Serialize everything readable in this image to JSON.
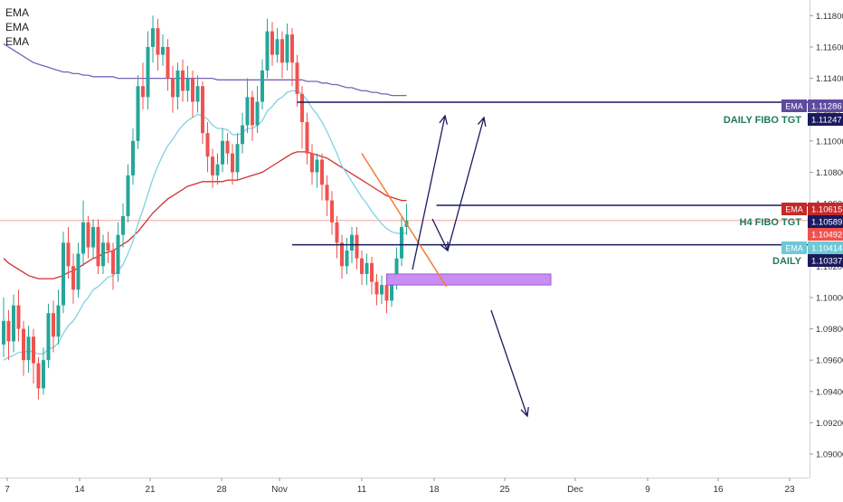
{
  "legend": {
    "items": [
      "EMA",
      "EMA",
      "EMA"
    ]
  },
  "chart_data": {
    "type": "candlestick",
    "symbol_unit": "price",
    "ylim": [
      1.0885,
      1.119
    ],
    "y_ticks": [
      "1.11800",
      "1.11600",
      "1.11400",
      "1.11200",
      "1.11000",
      "1.10800",
      "1.10600",
      "1.10400",
      "1.10200",
      "1.10000",
      "1.09800",
      "1.09600",
      "1.09400",
      "1.09200",
      "1.09000"
    ],
    "x_ticks": [
      "7",
      "14",
      "21",
      "28",
      "Nov",
      "11",
      "18",
      "25",
      "Dec",
      "9",
      "16",
      "23"
    ],
    "grid": false,
    "colors": {
      "up": "#26a69a",
      "down": "#ef5350",
      "ema_slow": "#7b61b7",
      "ema_mid": "#d32f2f",
      "ema_fast": "#7fd3e0",
      "zone": "#c98ef2",
      "annotation": "#1a1a5e",
      "triangle_line": "#f57c34"
    },
    "price_labels": [
      {
        "text": "EMA",
        "value": "1.11286",
        "price": 1.11286,
        "color": "#5e4b9e",
        "tag_color": "#5e4b9e"
      },
      {
        "text": "DAILY FIBO TGT",
        "value": "1.11247",
        "price": 1.11247,
        "color": "#1e7a5a",
        "tag_color": "#1a1a5e"
      },
      {
        "text": "EMA",
        "value": "1.10615",
        "price": 1.10615,
        "color": "#c62828",
        "tag_color": "#c62828"
      },
      {
        "text": "H4 FIBO TGT",
        "value": "1.10589",
        "price": 1.10589,
        "color": "#1e7a5a",
        "tag_color": "#1a1a5e"
      },
      {
        "text": "",
        "value": "1.10492",
        "price": 1.10492,
        "color": "#ef5350",
        "tag_color": "#ef5350"
      },
      {
        "text": "EMA",
        "value": "1.10414",
        "price": 1.10414,
        "color": "#5fbcc9",
        "tag_color": "#6fc8d6"
      },
      {
        "text": "DAILY",
        "value": "1.10337",
        "price": 1.10337,
        "color": "#1e7a5a",
        "tag_color": "#1a1a5e"
      }
    ],
    "last_price": 1.10492,
    "annotations": {
      "horizontal_lines": [
        {
          "label": "DAILY FIBO TGT",
          "price": 1.11247,
          "start_date_index": 59
        },
        {
          "label": "H4 FIBO TGT",
          "price": 1.10589,
          "start_date_index": 87
        },
        {
          "label": "DAILY",
          "price": 1.10337,
          "start_date_index": 58
        }
      ],
      "zone": {
        "price_top": 1.1015,
        "price_bottom": 1.1008,
        "start_index": 77,
        "end_index": 110
      },
      "triangle_line": [
        [
          72,
          1.1092
        ],
        [
          89,
          1.1007
        ]
      ]
    },
    "candles_open_close_high_low": [
      [
        1.097,
        1.0985,
        1.1,
        1.0962
      ],
      [
        1.0985,
        1.0972,
        1.0992,
        1.096
      ],
      [
        1.0972,
        1.0995,
        1.1002,
        1.0965
      ],
      [
        1.0995,
        1.098,
        1.1005,
        1.0972
      ],
      [
        1.098,
        1.096,
        1.0985,
        1.095
      ],
      [
        1.096,
        1.0975,
        1.0982,
        1.0952
      ],
      [
        1.0975,
        1.0958,
        1.098,
        1.0945
      ],
      [
        1.0958,
        1.0942,
        1.0962,
        1.0935
      ],
      [
        1.0942,
        1.096,
        1.0968,
        1.0938
      ],
      [
        1.096,
        1.099,
        1.0996,
        1.0955
      ],
      [
        1.099,
        1.0975,
        1.0998,
        1.0965
      ],
      [
        1.0975,
        1.0995,
        1.1005,
        1.097
      ],
      [
        1.0995,
        1.1035,
        1.1042,
        1.099
      ],
      [
        1.1035,
        1.102,
        1.1045,
        1.1012
      ],
      [
        1.102,
        1.1005,
        1.1028,
        1.0996
      ],
      [
        1.1005,
        1.1028,
        1.1035,
        1.1
      ],
      [
        1.1028,
        1.1048,
        1.1062,
        1.102
      ],
      [
        1.1048,
        1.1032,
        1.1052,
        1.1025
      ],
      [
        1.1032,
        1.1045,
        1.105,
        1.1025
      ],
      [
        1.1045,
        1.102,
        1.105,
        1.1015
      ],
      [
        1.102,
        1.1035,
        1.104,
        1.1015
      ],
      [
        1.1035,
        1.103,
        1.1042,
        1.1022
      ],
      [
        1.103,
        1.1015,
        1.1035,
        1.1005
      ],
      [
        1.1015,
        1.104,
        1.1048,
        1.101
      ],
      [
        1.104,
        1.1052,
        1.106,
        1.1032
      ],
      [
        1.1052,
        1.1078,
        1.1085,
        1.1048
      ],
      [
        1.1078,
        1.11,
        1.1108,
        1.1072
      ],
      [
        1.11,
        1.1135,
        1.1142,
        1.1095
      ],
      [
        1.1135,
        1.1128,
        1.115,
        1.112
      ],
      [
        1.1128,
        1.116,
        1.117,
        1.112
      ],
      [
        1.116,
        1.1172,
        1.118,
        1.115
      ],
      [
        1.1172,
        1.1155,
        1.1178,
        1.1145
      ],
      [
        1.1155,
        1.116,
        1.1168,
        1.1148
      ],
      [
        1.116,
        1.114,
        1.1165,
        1.1132
      ],
      [
        1.114,
        1.1128,
        1.1148,
        1.1118
      ],
      [
        1.1128,
        1.1145,
        1.115,
        1.112
      ],
      [
        1.1145,
        1.1132,
        1.1152,
        1.1125
      ],
      [
        1.1132,
        1.114,
        1.1148,
        1.1125
      ],
      [
        1.114,
        1.1125,
        1.1145,
        1.1115
      ],
      [
        1.1125,
        1.1135,
        1.1142,
        1.1118
      ],
      [
        1.1135,
        1.1105,
        1.1138,
        1.1098
      ],
      [
        1.1105,
        1.109,
        1.1112,
        1.108
      ],
      [
        1.109,
        1.1078,
        1.1095,
        1.107
      ],
      [
        1.1078,
        1.1085,
        1.1092,
        1.1072
      ],
      [
        1.1085,
        1.11,
        1.1108,
        1.108
      ],
      [
        1.11,
        1.1092,
        1.1105,
        1.1085
      ],
      [
        1.1092,
        1.108,
        1.1098,
        1.1072
      ],
      [
        1.108,
        1.1098,
        1.1105,
        1.1075
      ],
      [
        1.1098,
        1.111,
        1.1118,
        1.1092
      ],
      [
        1.111,
        1.1128,
        1.114,
        1.1105
      ],
      [
        1.1128,
        1.111,
        1.1132,
        1.11
      ],
      [
        1.111,
        1.1125,
        1.1135,
        1.1105
      ],
      [
        1.1125,
        1.1145,
        1.1152,
        1.112
      ],
      [
        1.1145,
        1.117,
        1.1178,
        1.114
      ],
      [
        1.117,
        1.1155,
        1.1176,
        1.1148
      ],
      [
        1.1155,
        1.1165,
        1.1172,
        1.115
      ],
      [
        1.1165,
        1.115,
        1.117,
        1.114
      ],
      [
        1.115,
        1.1168,
        1.1175,
        1.1145
      ],
      [
        1.1168,
        1.115,
        1.1172,
        1.1135
      ],
      [
        1.115,
        1.113,
        1.1155,
        1.1122
      ],
      [
        1.113,
        1.1112,
        1.1135,
        1.1095
      ],
      [
        1.1112,
        1.1092,
        1.1118,
        1.1085
      ],
      [
        1.1092,
        1.108,
        1.1098,
        1.1072
      ],
      [
        1.108,
        1.1088,
        1.1092,
        1.107
      ],
      [
        1.1088,
        1.1072,
        1.1092,
        1.1062
      ],
      [
        1.1072,
        1.1062,
        1.1078,
        1.1052
      ],
      [
        1.1062,
        1.1048,
        1.1068,
        1.104
      ],
      [
        1.1048,
        1.1035,
        1.1052,
        1.1025
      ],
      [
        1.1035,
        1.102,
        1.104,
        1.1012
      ],
      [
        1.102,
        1.103,
        1.1038,
        1.1015
      ],
      [
        1.103,
        1.104,
        1.1045,
        1.1022
      ],
      [
        1.104,
        1.1025,
        1.1045,
        1.1018
      ],
      [
        1.1025,
        1.1015,
        1.103,
        1.1008
      ],
      [
        1.1015,
        1.1022,
        1.1028,
        1.1008
      ],
      [
        1.1022,
        1.101,
        1.1026,
        1.1002
      ],
      [
        1.101,
        1.1002,
        1.1015,
        1.0995
      ],
      [
        1.1002,
        1.1008,
        1.1014,
        1.0996
      ],
      [
        1.1008,
        1.0998,
        1.1012,
        1.099
      ],
      [
        1.0998,
        1.101,
        1.1015,
        1.0994
      ],
      [
        1.101,
        1.1025,
        1.1032,
        1.1005
      ],
      [
        1.1025,
        1.1045,
        1.1052,
        1.102
      ],
      [
        1.1045,
        1.1049,
        1.106,
        1.104
      ]
    ],
    "ema_slow": [
      1.1162,
      1.116,
      1.1158,
      1.1156,
      1.1154,
      1.1152,
      1.115,
      1.1149,
      1.1148,
      1.1147,
      1.1146,
      1.1145,
      1.1144,
      1.1144,
      1.1143,
      1.1143,
      1.1142,
      1.1142,
      1.1141,
      1.1141,
      1.1141,
      1.1141,
      1.1141,
      1.114,
      1.114,
      1.114,
      1.114,
      1.114,
      1.114,
      1.114,
      1.114,
      1.114,
      1.114,
      1.114,
      1.114,
      1.114,
      1.114,
      1.114,
      1.114,
      1.114,
      1.114,
      1.114,
      1.114,
      1.1139,
      1.1139,
      1.1139,
      1.1139,
      1.1139,
      1.1139,
      1.1139,
      1.1139,
      1.1139,
      1.1139,
      1.1139,
      1.1139,
      1.1139,
      1.1139,
      1.1139,
      1.1139,
      1.1139,
      1.1139,
      1.1138,
      1.1138,
      1.1138,
      1.1137,
      1.1137,
      1.1136,
      1.1136,
      1.1135,
      1.1134,
      1.1134,
      1.1133,
      1.1132,
      1.1132,
      1.1131,
      1.1131,
      1.113,
      1.113,
      1.1129,
      1.1129,
      1.1129,
      1.1129
    ],
    "ema_mid": [
      1.1025,
      1.1022,
      1.102,
      1.1018,
      1.1016,
      1.1014,
      1.1013,
      1.1012,
      1.1012,
      1.1012,
      1.1012,
      1.1013,
      1.1014,
      1.1016,
      1.1017,
      1.1019,
      1.1021,
      1.1023,
      1.1025,
      1.1026,
      1.1028,
      1.1029,
      1.103,
      1.1032,
      1.1034,
      1.1036,
      1.1039,
      1.1042,
      1.1046,
      1.105,
      1.1054,
      1.1057,
      1.106,
      1.1063,
      1.1065,
      1.1067,
      1.1069,
      1.1071,
      1.1072,
      1.1073,
      1.1074,
      1.1074,
      1.1074,
      1.1074,
      1.1074,
      1.1075,
      1.1075,
      1.1075,
      1.1076,
      1.1077,
      1.1078,
      1.1079,
      1.108,
      1.1082,
      1.1084,
      1.1086,
      1.1088,
      1.109,
      1.1092,
      1.1093,
      1.1093,
      1.1093,
      1.1092,
      1.1091,
      1.109,
      1.1089,
      1.1087,
      1.1085,
      1.1083,
      1.1081,
      1.1079,
      1.1077,
      1.1075,
      1.1073,
      1.1071,
      1.1069,
      1.1067,
      1.1065,
      1.1064,
      1.1063,
      1.1062,
      1.1062
    ],
    "ema_fast": [
      1.096,
      1.0962,
      1.0963,
      1.0965,
      1.0965,
      1.0966,
      1.0965,
      1.0964,
      1.0964,
      1.0967,
      1.0968,
      1.0971,
      1.0977,
      1.0982,
      1.0985,
      1.099,
      1.0996,
      1.1,
      1.1005,
      1.1007,
      1.101,
      1.1013,
      1.1014,
      1.1017,
      1.1021,
      1.1028,
      1.1036,
      1.1047,
      1.1056,
      1.1066,
      1.1076,
      1.1084,
      1.1091,
      1.1097,
      1.1101,
      1.1106,
      1.111,
      1.1113,
      1.1115,
      1.1117,
      1.1116,
      1.1114,
      1.111,
      1.1108,
      1.1108,
      1.1107,
      1.1104,
      1.1104,
      1.1105,
      1.1108,
      1.1108,
      1.111,
      1.1113,
      1.1119,
      1.1122,
      1.1126,
      1.1128,
      1.1131,
      1.1132,
      1.1132,
      1.113,
      1.1126,
      1.1121,
      1.1117,
      1.1112,
      1.1106,
      1.1099,
      1.1092,
      1.1084,
      1.1079,
      1.1074,
      1.1069,
      1.1064,
      1.106,
      1.1055,
      1.1051,
      1.1047,
      1.1044,
      1.1042,
      1.1041,
      1.1041,
      1.1041
    ]
  }
}
